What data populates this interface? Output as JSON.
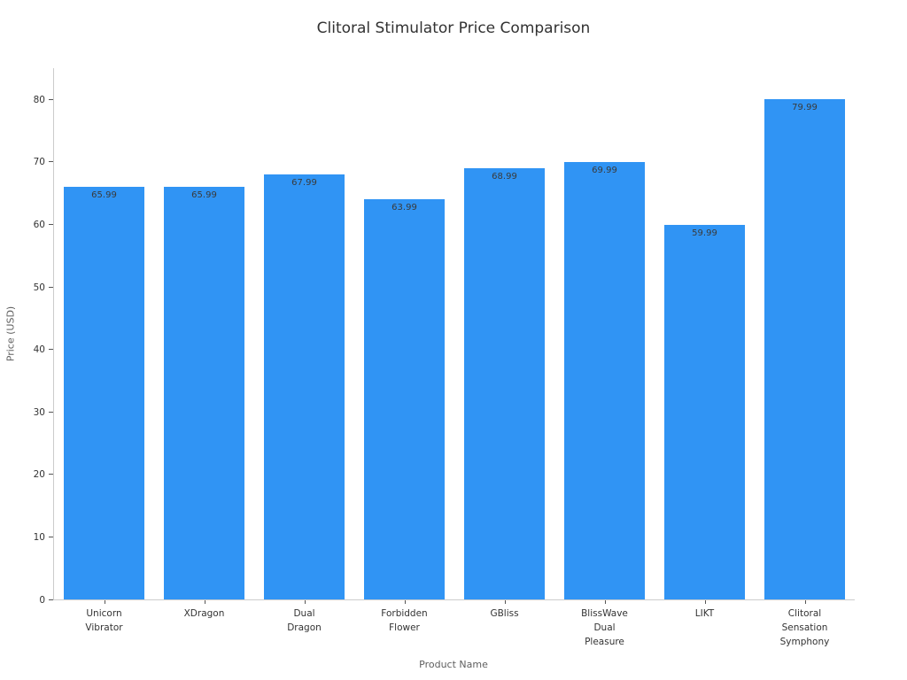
{
  "chart_data": {
    "type": "bar",
    "title": "Clitoral Stimulator Price Comparison",
    "xlabel": "Product Name",
    "ylabel": "Price (USD)",
    "categories": [
      [
        "Unicorn",
        "Vibrator"
      ],
      [
        "XDragon"
      ],
      [
        "Dual",
        "Dragon"
      ],
      [
        "Forbidden",
        "Flower"
      ],
      [
        "GBliss"
      ],
      [
        "BlissWave",
        "Dual",
        "Pleasure"
      ],
      [
        "LIKT"
      ],
      [
        "Clitoral",
        "Sensation",
        "Symphony"
      ]
    ],
    "values": [
      65.99,
      65.99,
      67.99,
      63.99,
      68.99,
      69.99,
      59.99,
      79.99
    ],
    "value_labels": [
      "65.99",
      "65.99",
      "67.99",
      "63.99",
      "68.99",
      "69.99",
      "59.99",
      "79.99"
    ],
    "yticks": [
      0,
      10,
      20,
      30,
      40,
      50,
      60,
      70,
      80
    ],
    "ylim": [
      0,
      85
    ],
    "grid": false,
    "legend": null,
    "colors": {
      "bar": "#3094F4",
      "title_text": "#323232",
      "tick_text": "#333333",
      "axis_label_text": "#5f5f5f",
      "value_label_text": "#3a3a3a",
      "spine": "#cccccc",
      "background": "#ffffff"
    }
  }
}
